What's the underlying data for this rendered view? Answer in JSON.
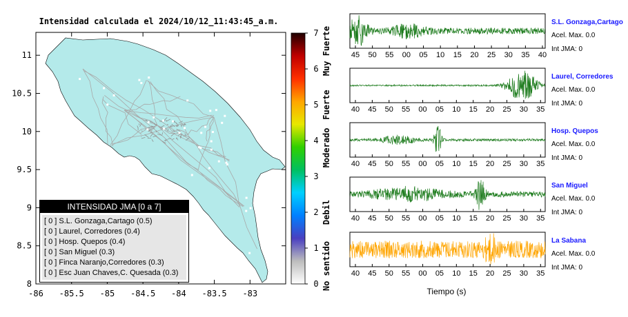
{
  "map": {
    "title": "Intensidad calculada el 2024/10/12_11:43:45_a.m.",
    "xticks": [
      "-86",
      "-85.5",
      "-85",
      "-84.5",
      "-84",
      "-83.5",
      "-83"
    ],
    "yticks": [
      "11",
      "10.5",
      "10",
      "9.5",
      "9",
      "8.5",
      "8"
    ],
    "xlim": [
      -86,
      -82.5
    ],
    "ylim": [
      8,
      11.3
    ],
    "land_color": "#b4eaea",
    "road_color": "#a8a8a8"
  },
  "legend": {
    "title": "INTENSIDAD JMA [0 a 7]",
    "items": [
      "[ 0 ] S.L. Gonzaga,Cartago (0.5)",
      "[ 0 ] Laurel, Corredores (0.4)",
      "[ 0 ] Hosp. Quepos (0.4)",
      "[ 0 ] San Miguel (0.3)",
      "[ 0 ] Finca Naranjo,Corredores (0.3)",
      "[ 0 ] Esc Juan Chaves,C. Quesada (0.3)"
    ]
  },
  "colorbar": {
    "ticks": [
      "0",
      "1",
      "2",
      "3",
      "4",
      "5",
      "6",
      "7"
    ],
    "labels": [
      "No sentido",
      "Debil",
      "Moderado",
      "Fuerte",
      "Muy Fuerte"
    ],
    "colors": [
      "#ffffff",
      "#bdbdbd",
      "#4a3fc0",
      "#0080ff",
      "#00d0ff",
      "#00c060",
      "#30d000",
      "#e8e800",
      "#ffa500",
      "#ff3000",
      "#c00000",
      "#200000"
    ]
  },
  "chart_data": {
    "type": "line",
    "xlabel": "Tiempo (s)",
    "panels": [
      {
        "name": "S.L. Gonzaga,Cartago",
        "acel": "Acel. Max. 0.0",
        "jma": "Int JMA: 0",
        "ticks": [
          "45",
          "50",
          "55",
          "00",
          "05",
          "10",
          "15",
          "20",
          "25",
          "30",
          "35",
          "40"
        ],
        "color": "#1a7a1a",
        "bursts": [
          [
            0.04,
            1.0,
            0.03
          ],
          [
            0.3,
            0.35,
            0.05
          ]
        ],
        "base": 0.2
      },
      {
        "name": "Laurel, Corredores",
        "acel": "Acel. Max. 0.0",
        "jma": "Int JMA: 0",
        "ticks": [
          "40",
          "45",
          "50",
          "55",
          "00",
          "05",
          "10",
          "15",
          "20",
          "25",
          "30",
          "35"
        ],
        "color": "#1a7a1a",
        "bursts": [
          [
            0.88,
            1.0,
            0.05
          ]
        ],
        "base": 0.05
      },
      {
        "name": "Hosp. Quepos",
        "acel": "Acel. Max. 0.0",
        "jma": "Int JMA: 0",
        "ticks": [
          "40",
          "45",
          "50",
          "55",
          "00",
          "05",
          "10",
          "15",
          "20",
          "25",
          "30",
          "35"
        ],
        "color": "#1a7a1a",
        "bursts": [
          [
            0.45,
            1.0,
            0.012
          ],
          [
            0.25,
            0.25,
            0.06
          ]
        ],
        "base": 0.08
      },
      {
        "name": "San Miguel",
        "acel": "Acel. Max. 0.0",
        "jma": "Int JMA: 0",
        "ticks": [
          "40",
          "45",
          "50",
          "55",
          "00",
          "05",
          "10",
          "15",
          "20",
          "25",
          "30",
          "35"
        ],
        "color": "#1a7a1a",
        "bursts": [
          [
            0.67,
            1.0,
            0.015
          ],
          [
            0.3,
            0.35,
            0.12
          ]
        ],
        "base": 0.18
      },
      {
        "name": "La Sabana",
        "acel": "Acel. Max. 0.0",
        "jma": "Int JMA: 0",
        "ticks": [
          "40",
          "45",
          "50",
          "55",
          "00",
          "05",
          "10",
          "15",
          "20",
          "25",
          "30",
          "35"
        ],
        "color": "#ffa500",
        "bursts": [
          [
            0.72,
            1.0,
            0.015
          ]
        ],
        "base": 0.55
      }
    ]
  }
}
